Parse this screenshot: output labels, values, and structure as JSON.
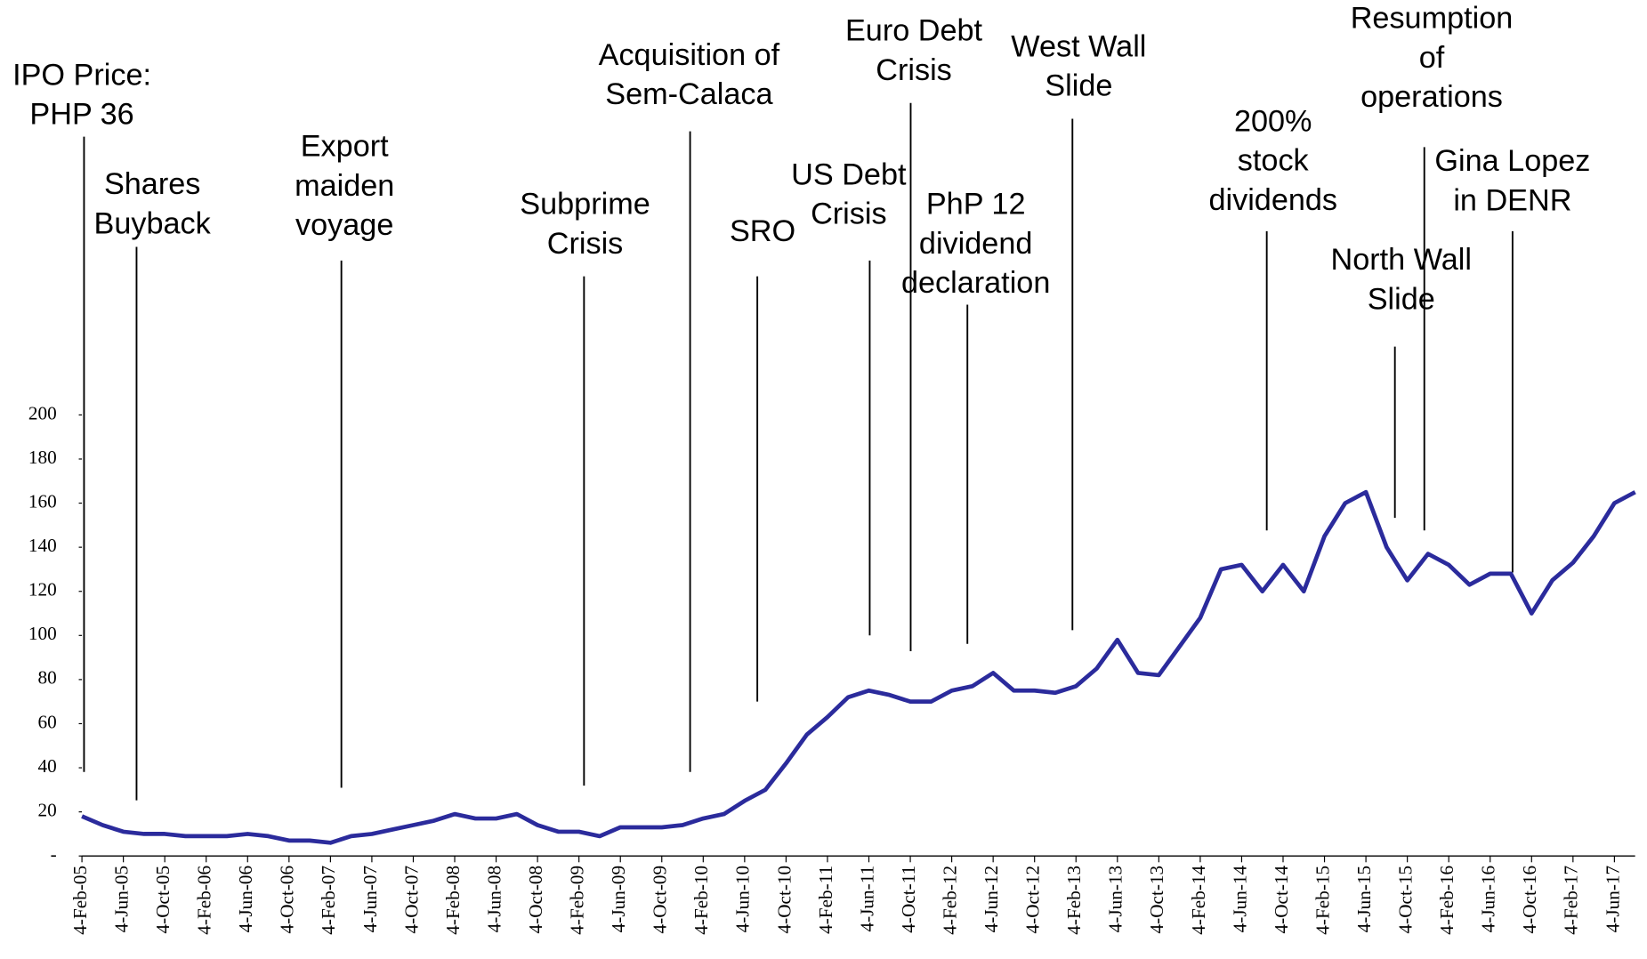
{
  "chart_data": {
    "type": "line",
    "categories": [
      "4-Feb-05",
      null,
      "4-Jun-05",
      null,
      "4-Oct-05",
      null,
      "4-Feb-06",
      null,
      "4-Jun-06",
      null,
      "4-Oct-06",
      null,
      "4-Feb-07",
      null,
      "4-Jun-07",
      null,
      "4-Oct-07",
      null,
      "4-Feb-08",
      null,
      "4-Jun-08",
      null,
      "4-Oct-08",
      null,
      "4-Feb-09",
      null,
      "4-Jun-09",
      null,
      "4-Oct-09",
      null,
      "4-Feb-10",
      null,
      "4-Jun-10",
      null,
      "4-Oct-10",
      null,
      "4-Feb-11",
      null,
      "4-Jun-11",
      null,
      "4-Oct-11",
      null,
      "4-Feb-12",
      null,
      "4-Jun-12",
      null,
      "4-Oct-12",
      null,
      "4-Feb-13",
      null,
      "4-Jun-13",
      null,
      "4-Oct-13",
      null,
      "4-Feb-14",
      null,
      "4-Jun-14",
      null,
      "4-Oct-14",
      null,
      "4-Feb-15",
      null,
      "4-Jun-15",
      null,
      "4-Oct-15",
      null,
      "4-Feb-16",
      null,
      "4-Jun-16",
      null,
      "4-Oct-16",
      null,
      "4-Feb-17",
      null,
      "4-Jun-17",
      null
    ],
    "values": [
      18,
      14,
      11,
      10,
      10,
      9,
      9,
      9,
      10,
      9,
      7,
      7,
      6,
      9,
      10,
      12,
      14,
      16,
      19,
      17,
      17,
      19,
      14,
      11,
      11,
      9,
      13,
      13,
      13,
      14,
      17,
      19,
      25,
      30,
      42,
      55,
      63,
      72,
      75,
      73,
      70,
      70,
      75,
      77,
      83,
      75,
      75,
      74,
      77,
      85,
      98,
      83,
      82,
      95,
      108,
      130,
      132,
      120,
      132,
      120,
      145,
      160,
      165,
      140,
      125,
      137,
      132,
      123,
      128,
      128,
      110,
      125,
      133,
      145,
      160,
      165
    ],
    "color": "#2b2b9c",
    "ylim": [
      0,
      200
    ],
    "yticks": [
      {
        "value": 0,
        "label": "-"
      },
      20,
      40,
      60,
      80,
      100,
      120,
      140,
      160,
      180,
      200
    ],
    "grid": false,
    "annotations": [
      {
        "lines": [
          "IPO Price:",
          "PHP 36"
        ]
      },
      {
        "lines": [
          "Shares",
          "Buyback"
        ]
      },
      {
        "lines": [
          "Export",
          "maiden",
          "voyage"
        ]
      },
      {
        "lines": [
          "Subprime",
          "Crisis"
        ]
      },
      {
        "lines": [
          "Acquisition of",
          "Sem-Calaca"
        ]
      },
      {
        "lines": [
          "SRO"
        ]
      },
      {
        "lines": [
          "US Debt",
          "Crisis"
        ]
      },
      {
        "lines": [
          "Euro Debt",
          "Crisis"
        ]
      },
      {
        "lines": [
          "PhP 12",
          "dividend",
          "declaration"
        ]
      },
      {
        "lines": [
          "West Wall",
          "Slide"
        ]
      },
      {
        "lines": [
          "200%",
          "stock",
          "dividends"
        ]
      },
      {
        "lines": [
          "Resumption",
          "of",
          "operations"
        ]
      },
      {
        "lines": [
          "North Wall",
          "Slide"
        ]
      },
      {
        "lines": [
          "Gina Lopez",
          "in DENR"
        ]
      }
    ]
  }
}
